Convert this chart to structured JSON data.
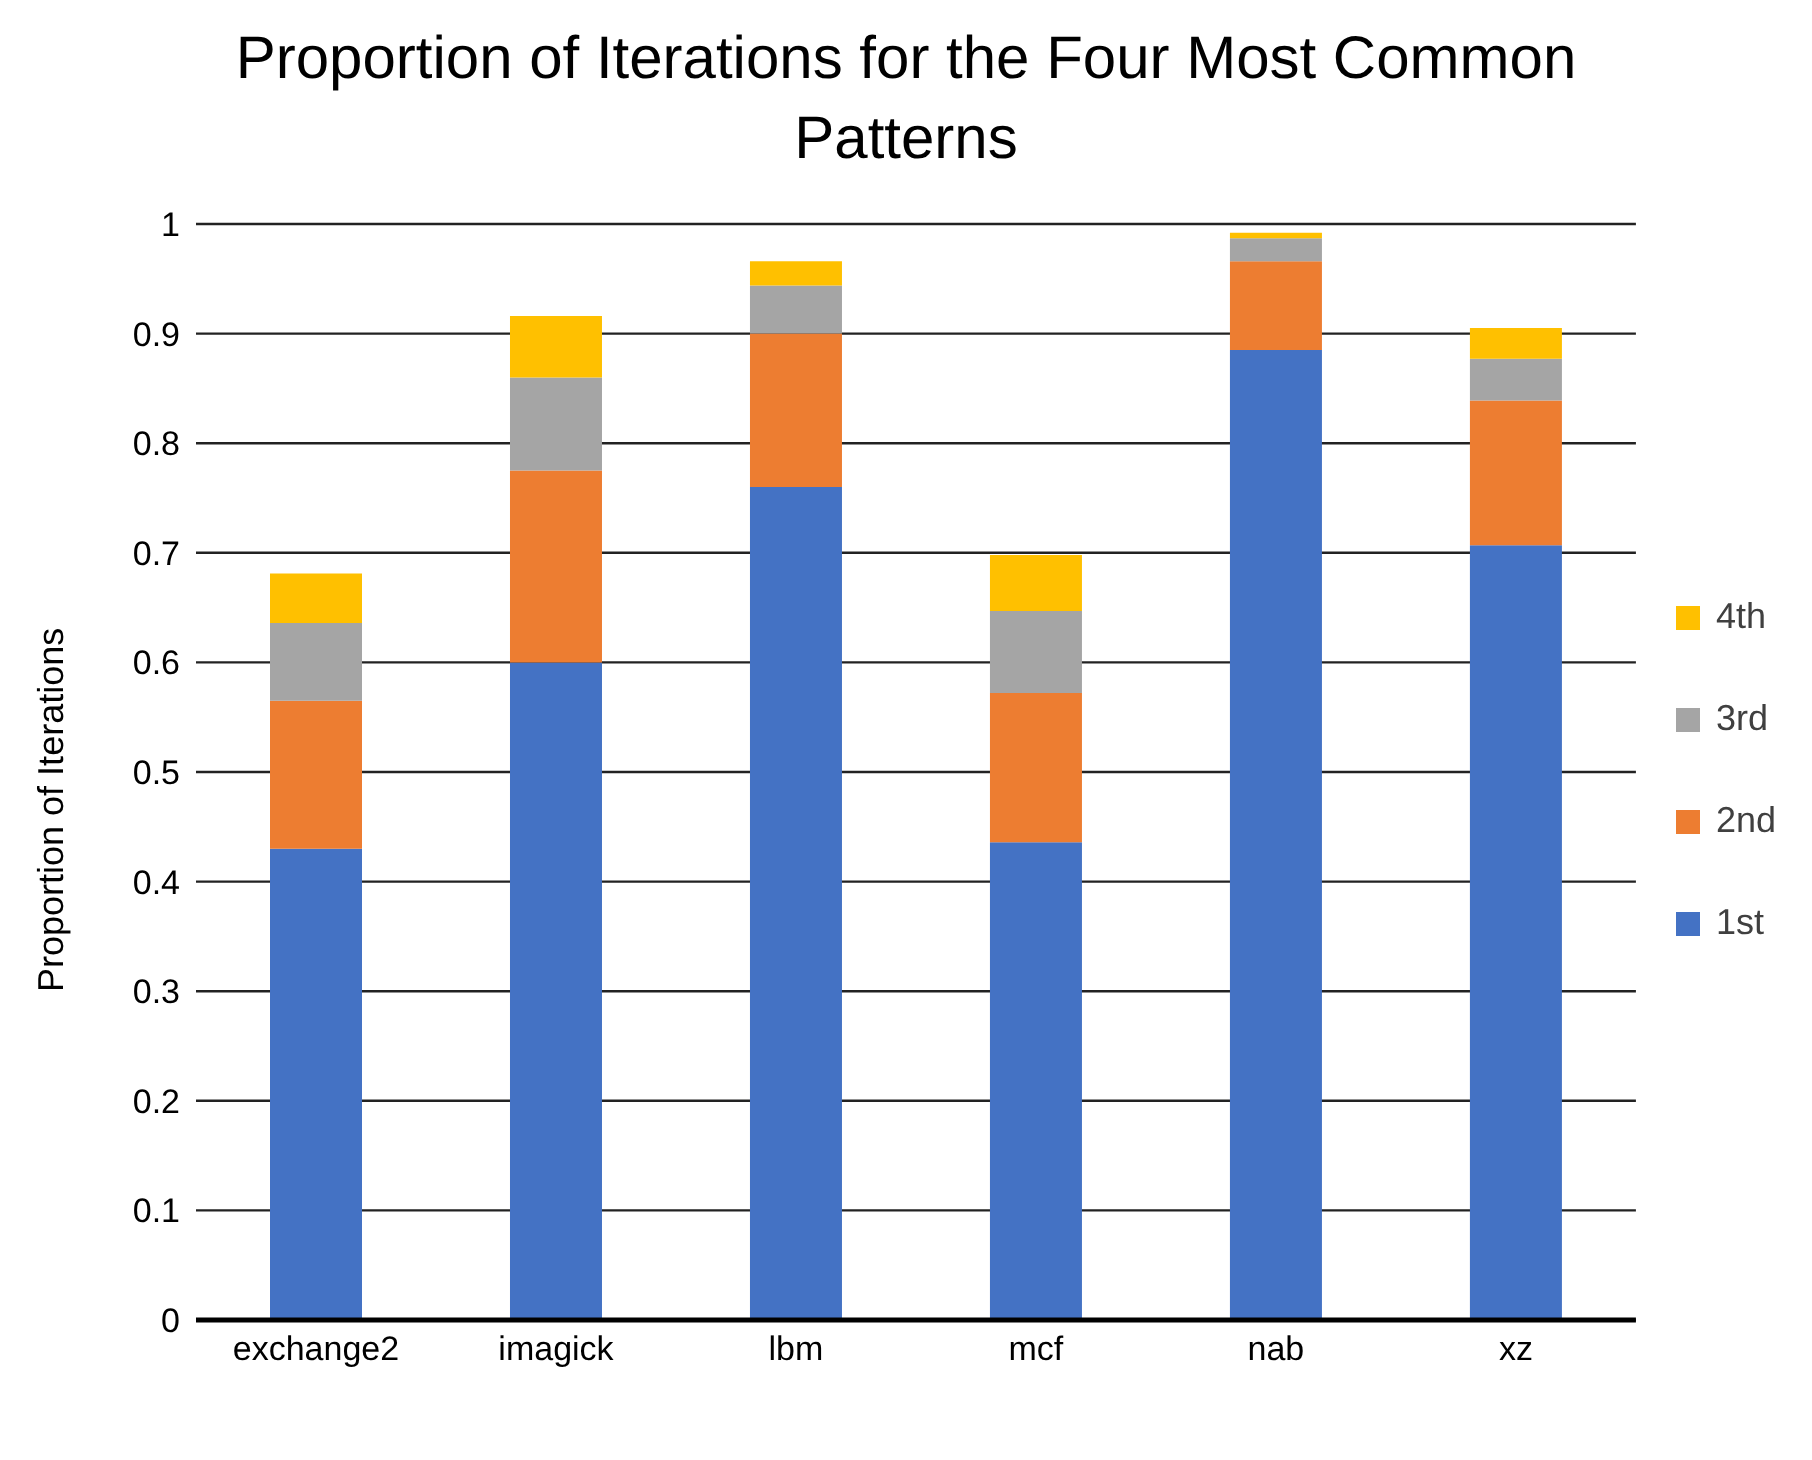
{
  "chart_data": {
    "type": "bar",
    "title": "Proportion of Iterations for the Four Most Common Patterns",
    "ylabel": "Proportion of Iterations",
    "categories": [
      "exchange2",
      "imagick",
      "lbm",
      "mcf",
      "nab",
      "xz"
    ],
    "stacked": true,
    "series": [
      {
        "name": "1st",
        "color": "#4472c4",
        "values": [
          0.43,
          0.6,
          0.76,
          0.436,
          0.885,
          0.707
        ]
      },
      {
        "name": "2nd",
        "color": "#ed7d31",
        "values": [
          0.135,
          0.175,
          0.14,
          0.136,
          0.081,
          0.132
        ]
      },
      {
        "name": "3rd",
        "color": "#a5a5a5",
        "values": [
          0.071,
          0.085,
          0.044,
          0.075,
          0.021,
          0.038
        ]
      },
      {
        "name": "4th",
        "color": "#ffc000",
        "values": [
          0.045,
          0.056,
          0.022,
          0.051,
          0.005,
          0.028
        ]
      }
    ],
    "ylim": [
      0,
      1
    ],
    "yticks": [
      0,
      0.1,
      0.2,
      0.3,
      0.4,
      0.5,
      0.6,
      0.7,
      0.8,
      0.9,
      1
    ],
    "grid": "y",
    "legend": "right"
  }
}
